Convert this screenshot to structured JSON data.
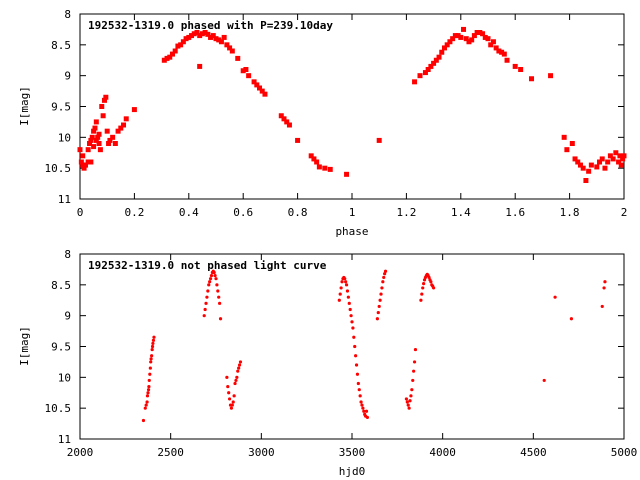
{
  "colors": {
    "series": "#ff0000",
    "axes": "#000000",
    "background": "#ffffff"
  },
  "chart_data": [
    {
      "type": "scatter",
      "title": "192532-1319.0 phased with P=239.10day",
      "xlabel": "phase",
      "ylabel": "I[mag]",
      "xlim": [
        0,
        2
      ],
      "ylim": [
        11,
        8
      ],
      "y_inverted": true,
      "grid": false,
      "marker": "filled-square",
      "xticks": [
        0,
        0.2,
        0.4,
        0.6,
        0.8,
        1,
        1.2,
        1.4,
        1.6,
        1.8,
        2
      ],
      "xtick_labels": [
        "0",
        "0.2",
        "0.4",
        "0.6",
        "0.8",
        "1",
        "1.2",
        "1.4",
        "1.6",
        "1.8",
        "2"
      ],
      "yticks": [
        8,
        8.5,
        9,
        9.5,
        10,
        10.5,
        11
      ],
      "ytick_labels": [
        "8",
        "8.5",
        "9",
        "9.5",
        "10",
        "10.5",
        "11"
      ],
      "series": [
        {
          "x": [
            0.0,
            0.005,
            0.01,
            0.015,
            0.02,
            0.03,
            0.035,
            0.04,
            0.045,
            0.05,
            0.055,
            0.06,
            0.065,
            0.07,
            0.075,
            0.08,
            0.085,
            0.09,
            0.095,
            0.1,
            0.105,
            0.11,
            0.12,
            0.13,
            0.14,
            0.15,
            0.16,
            0.17,
            0.2,
            0.04,
            0.05,
            0.06,
            0.07,
            0.02,
            0.03,
            0.01,
            0.31,
            0.32,
            0.33,
            0.34,
            0.35,
            0.36,
            0.37,
            0.38,
            0.39,
            0.4,
            0.41,
            0.42,
            0.43,
            0.44,
            0.45,
            0.46,
            0.47,
            0.48,
            0.49,
            0.5,
            0.51,
            0.52,
            0.53,
            0.54,
            0.55,
            0.56,
            0.44,
            0.58,
            0.6,
            0.61,
            0.62,
            0.64,
            0.65,
            0.66,
            0.67,
            0.68,
            0.74,
            0.75,
            0.76,
            0.77,
            0.8,
            0.85,
            0.86,
            0.87,
            0.88,
            0.9,
            0.92,
            0.98,
            1.1,
            1.23,
            1.25,
            1.27,
            1.28,
            1.29,
            1.3,
            1.31,
            1.32,
            1.33,
            1.34,
            1.35,
            1.36,
            1.37,
            1.38,
            1.39,
            1.4,
            1.41,
            1.42,
            1.43,
            1.44,
            1.45,
            1.46,
            1.47,
            1.48,
            1.49,
            1.5,
            1.51,
            1.52,
            1.53,
            1.54,
            1.55,
            1.56,
            1.57,
            1.6,
            1.62,
            1.66,
            1.73,
            1.78,
            1.79,
            1.81,
            1.82,
            1.83,
            1.84,
            1.85,
            1.86,
            1.87,
            1.88,
            1.9,
            1.91,
            1.92,
            1.93,
            1.94,
            1.95,
            1.96,
            1.97,
            1.98,
            1.985,
            1.99,
            1.995,
            2.0
          ],
          "y": [
            10.2,
            10.4,
            10.45,
            10.5,
            10.45,
            10.2,
            10.1,
            10.05,
            10.0,
            9.9,
            9.85,
            9.75,
            10.0,
            10.1,
            10.2,
            9.5,
            9.65,
            9.4,
            9.35,
            9.9,
            10.1,
            10.05,
            10.0,
            10.1,
            9.9,
            9.85,
            9.8,
            9.7,
            9.55,
            10.4,
            10.15,
            10.05,
            9.95,
            10.45,
            10.4,
            10.3,
            8.75,
            8.72,
            8.7,
            8.65,
            8.6,
            8.52,
            8.5,
            8.45,
            8.4,
            8.38,
            8.35,
            8.32,
            8.3,
            8.35,
            8.32,
            8.3,
            8.33,
            8.38,
            8.35,
            8.4,
            8.42,
            8.45,
            8.38,
            8.5,
            8.55,
            8.6,
            8.85,
            8.72,
            8.92,
            8.9,
            9.0,
            9.1,
            9.15,
            9.2,
            9.25,
            9.3,
            9.65,
            9.7,
            9.75,
            9.8,
            10.05,
            10.3,
            10.35,
            10.4,
            10.48,
            10.5,
            10.52,
            10.6,
            10.05,
            9.1,
            9.0,
            8.95,
            8.9,
            8.85,
            8.8,
            8.75,
            8.7,
            8.62,
            8.55,
            8.5,
            8.45,
            8.4,
            8.35,
            8.35,
            8.38,
            8.25,
            8.4,
            8.45,
            8.42,
            8.35,
            8.3,
            8.3,
            8.32,
            8.38,
            8.4,
            8.5,
            8.45,
            8.55,
            8.6,
            8.62,
            8.65,
            8.75,
            8.85,
            8.9,
            9.05,
            9.0,
            10.0,
            10.2,
            10.1,
            10.35,
            10.4,
            10.45,
            10.5,
            10.7,
            10.55,
            10.45,
            10.48,
            10.4,
            10.35,
            10.5,
            10.4,
            10.3,
            10.35,
            10.25,
            10.4,
            10.3,
            10.45,
            10.35,
            10.3
          ]
        }
      ]
    },
    {
      "type": "scatter",
      "title": "192532-1319.0 not phased light curve",
      "xlabel": "hjd0",
      "ylabel": "I[mag]",
      "xlim": [
        2000,
        5000
      ],
      "ylim": [
        11,
        8
      ],
      "y_inverted": true,
      "grid": false,
      "marker": "dot",
      "xticks": [
        2000,
        2500,
        3000,
        3500,
        4000,
        4500,
        5000
      ],
      "xtick_labels": [
        "2000",
        "2500",
        "3000",
        "3500",
        "4000",
        "4500",
        "5000"
      ],
      "yticks": [
        8,
        8.5,
        9,
        9.5,
        10,
        10.5,
        11
      ],
      "ytick_labels": [
        "8",
        "8.5",
        "9",
        "9.5",
        "10",
        "10.5",
        "11"
      ],
      "series": [
        {
          "x": [
            2350,
            2360,
            2365,
            2370,
            2372,
            2375,
            2378,
            2380,
            2382,
            2385,
            2388,
            2390,
            2392,
            2395,
            2398,
            2400,
            2402,
            2405,
            2408,
            2685,
            2690,
            2695,
            2700,
            2705,
            2710,
            2715,
            2720,
            2725,
            2730,
            2735,
            2740,
            2745,
            2750,
            2755,
            2760,
            2765,
            2770,
            2775,
            2810,
            2815,
            2820,
            2825,
            2830,
            2835,
            2840,
            2845,
            2850,
            2855,
            2860,
            2865,
            2870,
            2875,
            2880,
            2885,
            3430,
            3435,
            3440,
            3445,
            3450,
            3455,
            3460,
            3465,
            3470,
            3475,
            3480,
            3485,
            3490,
            3495,
            3500,
            3505,
            3510,
            3515,
            3520,
            3525,
            3530,
            3535,
            3540,
            3545,
            3550,
            3555,
            3560,
            3565,
            3570,
            3575,
            3580,
            3585,
            3640,
            3645,
            3650,
            3655,
            3660,
            3665,
            3670,
            3675,
            3680,
            3685,
            3800,
            3805,
            3810,
            3815,
            3820,
            3825,
            3830,
            3835,
            3840,
            3845,
            3850,
            3880,
            3885,
            3890,
            3895,
            3900,
            3905,
            3910,
            3915,
            3920,
            3925,
            3930,
            3935,
            3940,
            3945,
            3950,
            4560,
            4620,
            4710,
            4880,
            4890,
            4895
          ],
          "y": [
            10.7,
            10.5,
            10.45,
            10.4,
            10.3,
            10.25,
            10.2,
            10.15,
            10.05,
            9.95,
            9.85,
            9.75,
            9.7,
            9.65,
            9.55,
            9.5,
            9.45,
            9.4,
            9.35,
            9.0,
            8.9,
            8.8,
            8.7,
            8.6,
            8.5,
            8.45,
            8.4,
            8.35,
            8.3,
            8.28,
            8.3,
            8.35,
            8.4,
            8.5,
            8.6,
            8.7,
            8.8,
            9.05,
            10.0,
            10.15,
            10.25,
            10.35,
            10.45,
            10.5,
            10.45,
            10.4,
            10.3,
            10.1,
            10.05,
            10.0,
            9.9,
            9.85,
            9.8,
            9.75,
            8.75,
            8.65,
            8.55,
            8.45,
            8.4,
            8.38,
            8.4,
            8.45,
            8.5,
            8.6,
            8.7,
            8.8,
            8.9,
            9.0,
            9.1,
            9.2,
            9.35,
            9.5,
            9.65,
            9.8,
            9.95,
            10.1,
            10.2,
            10.3,
            10.4,
            10.45,
            10.5,
            10.55,
            10.6,
            10.63,
            10.55,
            10.65,
            9.05,
            8.95,
            8.85,
            8.75,
            8.65,
            8.55,
            8.45,
            8.38,
            8.32,
            8.28,
            10.35,
            10.4,
            10.45,
            10.5,
            10.38,
            10.3,
            10.2,
            10.05,
            9.9,
            9.75,
            9.55,
            8.75,
            8.65,
            8.55,
            8.48,
            8.42,
            8.38,
            8.35,
            8.33,
            8.35,
            8.38,
            8.42,
            8.45,
            8.5,
            8.52,
            8.55,
            10.05,
            8.7,
            9.05,
            8.85,
            8.55,
            8.45
          ]
        }
      ]
    }
  ]
}
